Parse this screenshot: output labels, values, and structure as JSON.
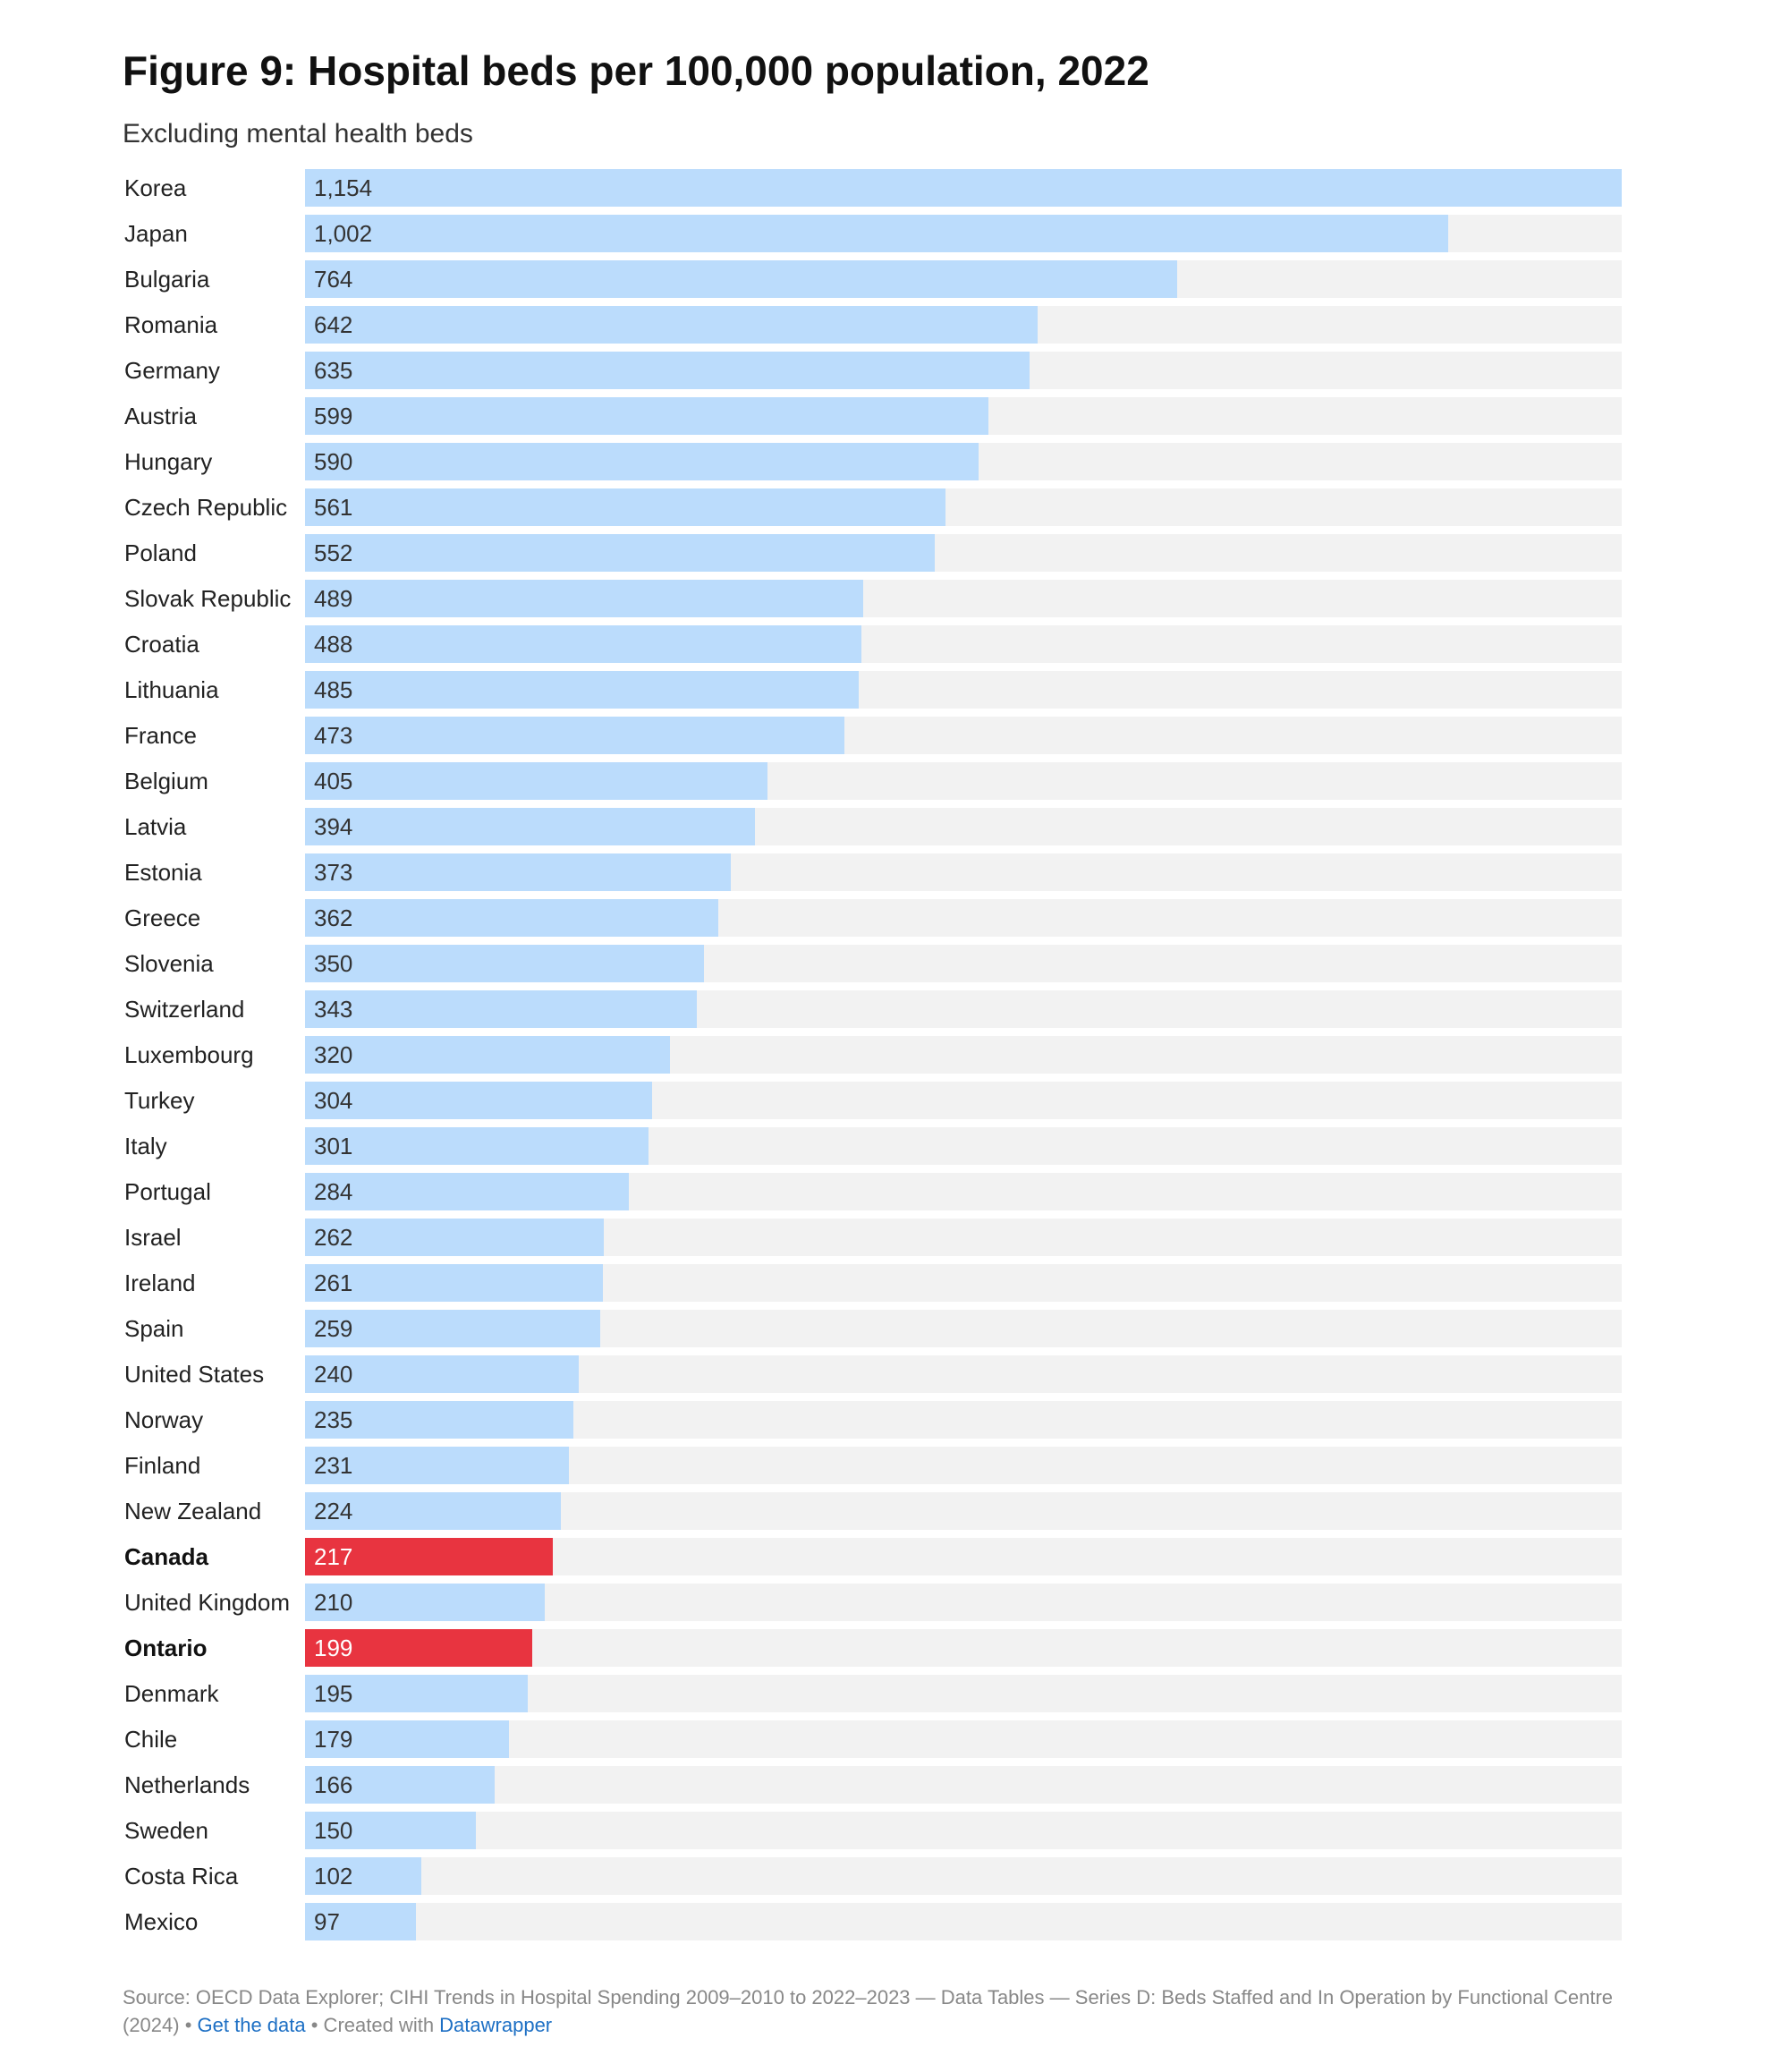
{
  "title": "Figure 9: Hospital beds per 100,000 population, 2022",
  "subtitle": "Excluding mental health beds",
  "footer": {
    "source": "Source: OECD Data Explorer; CIHI Trends in Hospital Spending 2009–2010 to 2022–2023 — Data Tables — Series D: Beds Staffed and In Operation by Functional Centre (2024)",
    "sep1": " • ",
    "get_data": "Get the data",
    "sep2": " • Created with ",
    "datawrapper": "Datawrapper"
  },
  "colors": {
    "bar": "#bbdcfc",
    "highlight": "#e83440",
    "track": "#f2f2f2",
    "link": "#1d6fc4"
  },
  "chart_data": {
    "type": "bar",
    "orientation": "horizontal",
    "title": "Figure 9: Hospital beds per 100,000 population, 2022",
    "subtitle": "Excluding mental health beds",
    "xlim": [
      0,
      1154
    ],
    "categories": [
      "Korea",
      "Japan",
      "Bulgaria",
      "Romania",
      "Germany",
      "Austria",
      "Hungary",
      "Czech Republic",
      "Poland",
      "Slovak Republic",
      "Croatia",
      "Lithuania",
      "France",
      "Belgium",
      "Latvia",
      "Estonia",
      "Greece",
      "Slovenia",
      "Switzerland",
      "Luxembourg",
      "Turkey",
      "Italy",
      "Portugal",
      "Israel",
      "Ireland",
      "Spain",
      "United States",
      "Norway",
      "Finland",
      "New Zealand",
      "Canada",
      "United Kingdom",
      "Ontario",
      "Denmark",
      "Chile",
      "Netherlands",
      "Sweden",
      "Costa Rica",
      "Mexico"
    ],
    "values": [
      1154,
      1002,
      764,
      642,
      635,
      599,
      590,
      561,
      552,
      489,
      488,
      485,
      473,
      405,
      394,
      373,
      362,
      350,
      343,
      320,
      304,
      301,
      284,
      262,
      261,
      259,
      240,
      235,
      231,
      224,
      217,
      210,
      199,
      195,
      179,
      166,
      150,
      102,
      97
    ],
    "value_labels": [
      "1,154",
      "1,002",
      "764",
      "642",
      "635",
      "599",
      "590",
      "561",
      "552",
      "489",
      "488",
      "485",
      "473",
      "405",
      "394",
      "373",
      "362",
      "350",
      "343",
      "320",
      "304",
      "301",
      "284",
      "262",
      "261",
      "259",
      "240",
      "235",
      "231",
      "224",
      "217",
      "210",
      "199",
      "195",
      "179",
      "166",
      "150",
      "102",
      "97"
    ],
    "highlighted": [
      "Canada",
      "Ontario"
    ]
  }
}
